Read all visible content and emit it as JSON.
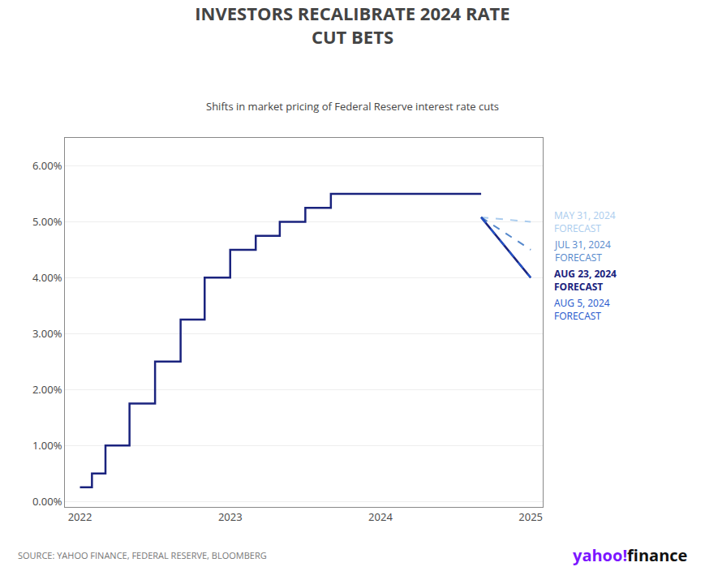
{
  "chart_data": {
    "type": "line",
    "title": "INVESTORS RECALIBRATE 2024 RATE\nCUT BETS",
    "subtitle": "Shifts in market pricing of Federal Reserve interest rate cuts",
    "source": "SOURCE: YAHOO FINANCE, FEDERAL RESERVE, BLOOMBERG",
    "annotations": [
      {
        "text": "yahoo",
        "color": "#7b16ff"
      },
      {
        "text": "!",
        "color": "#7b16ff"
      },
      {
        "text": "finance",
        "color": "#111111"
      }
    ],
    "legend": false,
    "grid": "y",
    "xlim": [
      2021.9,
      2025.08
    ],
    "xticks": [
      2022,
      2023,
      2024,
      2025
    ],
    "ylim": [
      -0.1,
      6.5
    ],
    "yticks": [
      {
        "value": 0.0,
        "label": "0.00%"
      },
      {
        "value": 1.0,
        "label": "1.00%"
      },
      {
        "value": 2.0,
        "label": "2.00%"
      },
      {
        "value": 3.0,
        "label": "3.00%"
      },
      {
        "value": 4.0,
        "label": "4.00%"
      },
      {
        "value": 5.0,
        "label": "5.00%"
      },
      {
        "value": 6.0,
        "label": "6.00%"
      }
    ],
    "series": [
      {
        "color": "#1a237e",
        "line_style": "solid",
        "x": [
          2022.0,
          2022.08,
          2022.08,
          2022.17,
          2022.17,
          2022.33,
          2022.33,
          2022.5,
          2022.5,
          2022.67,
          2022.67,
          2022.83,
          2022.83,
          2023.0,
          2023.0,
          2023.17,
          2023.17,
          2023.33,
          2023.33,
          2023.5,
          2023.5,
          2023.67,
          2023.67,
          2023.83,
          2023.83,
          2024.0,
          2024.0,
          2024.58,
          2024.58,
          2024.67
        ],
        "values": [
          0.25,
          0.25,
          0.5,
          0.5,
          1.0,
          1.0,
          1.75,
          1.75,
          2.5,
          2.5,
          3.25,
          3.25,
          4.0,
          4.0,
          4.5,
          4.5,
          4.75,
          4.75,
          5.0,
          5.0,
          5.25,
          5.25,
          5.5,
          5.5,
          5.5,
          5.5,
          5.5,
          5.5,
          5.5,
          5.5
        ]
      },
      {
        "name": "MAY 31, 2024\nFORECAST",
        "color": "#aaccee",
        "line_style": "dashed",
        "x": [
          2024.67,
          2025.0
        ],
        "values": [
          5.08,
          5.0
        ]
      },
      {
        "name": "JUL 31, 2024\nFORECAST",
        "color": "#5588cc",
        "line_style": "dashed",
        "x": [
          2024.67,
          2025.0
        ],
        "values": [
          5.08,
          4.5
        ]
      },
      {
        "name": "AUG 23, 2024\nFORECAST",
        "color": "#1a237e",
        "line_style": "solid",
        "x": [
          2024.67,
          2025.0
        ],
        "values": [
          5.08,
          4.0
        ]
      },
      {
        "name": "AUG 5, 2024\nFORECAST",
        "color": "#2255cc",
        "line_style": "dashed",
        "x": [
          2024.67,
          2025.0
        ],
        "values": [
          5.08,
          4.0
        ]
      }
    ]
  }
}
